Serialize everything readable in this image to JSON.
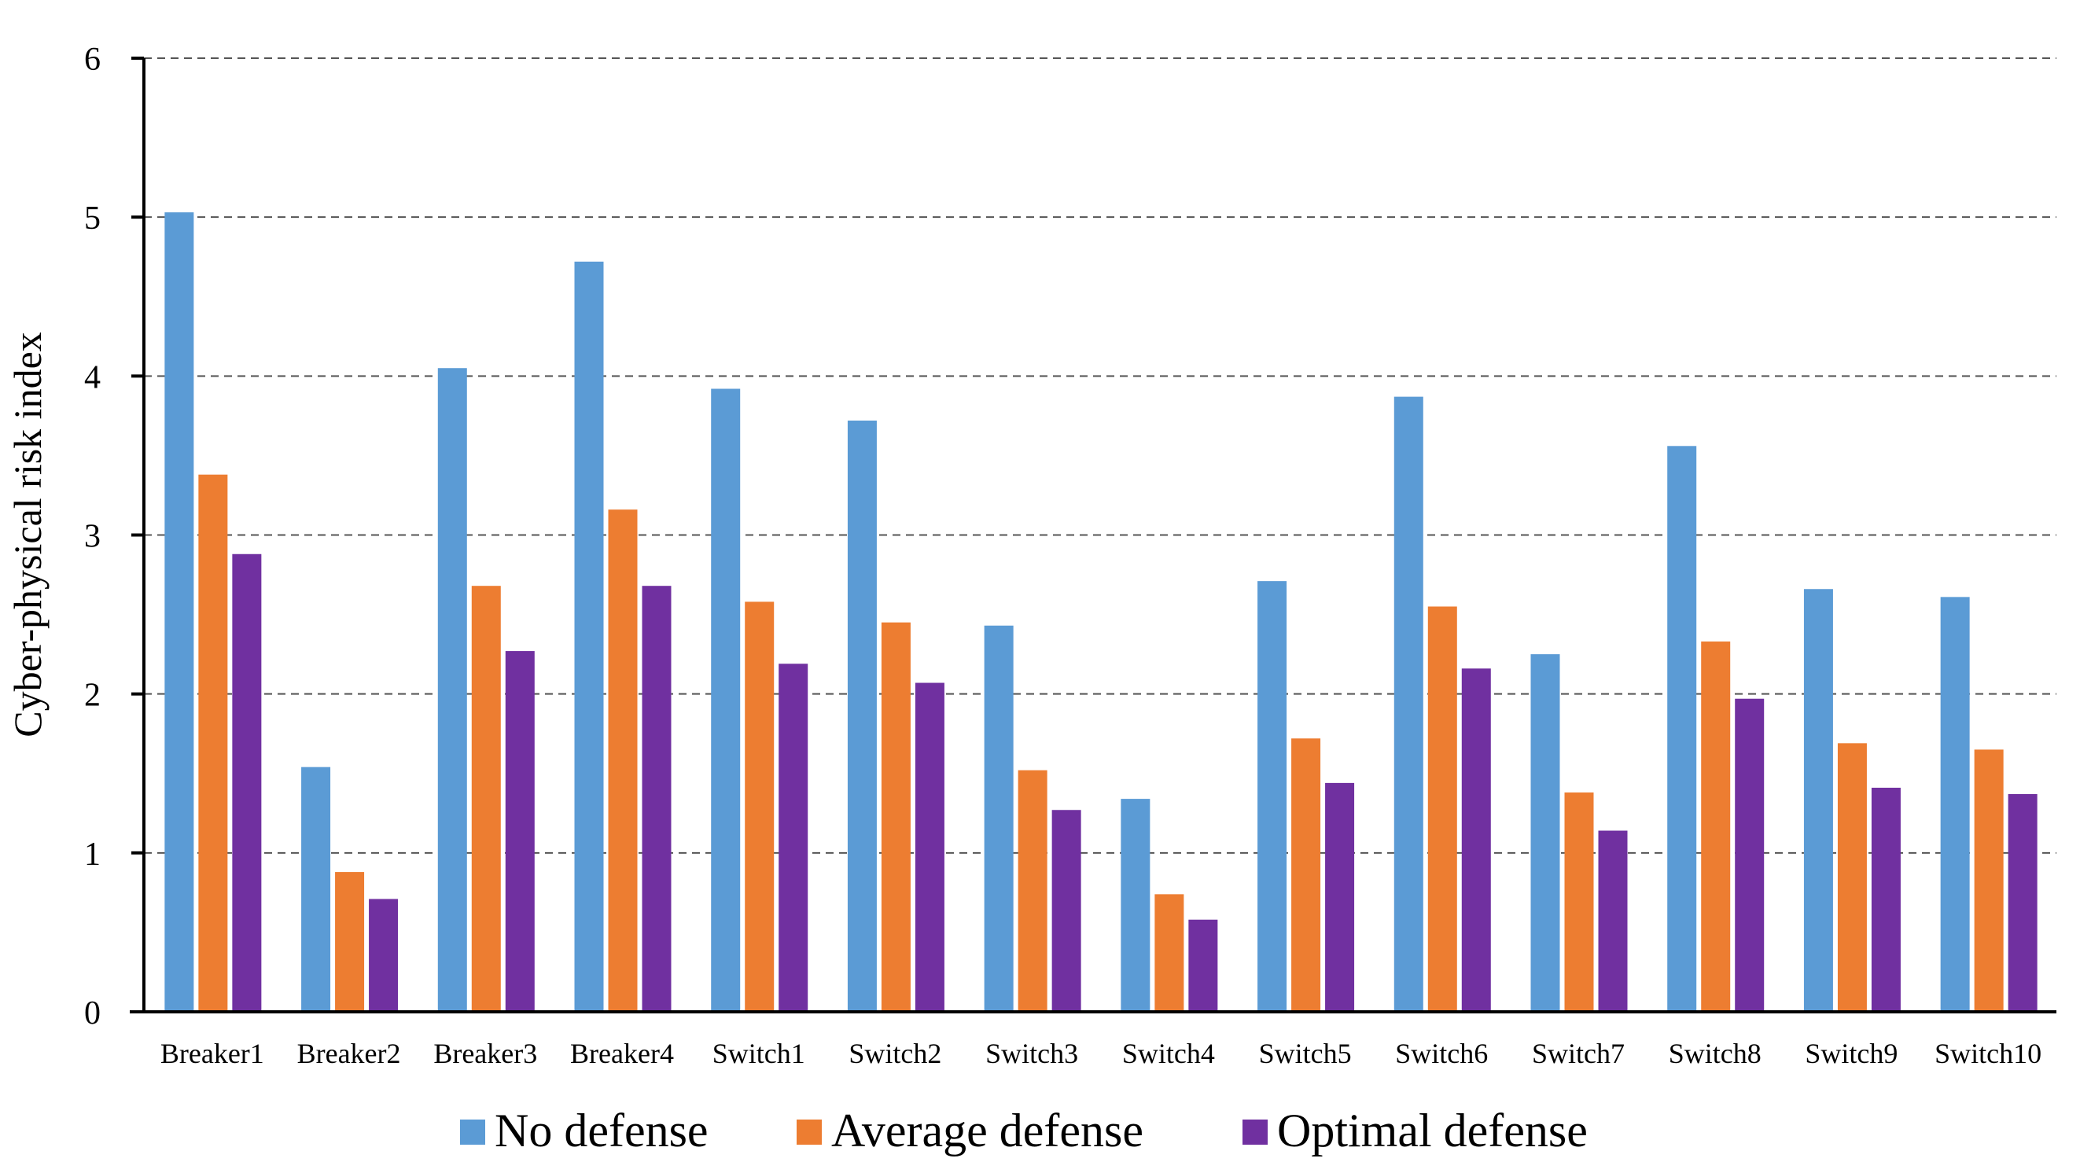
{
  "chart_data": {
    "type": "bar",
    "title": "",
    "xlabel": "",
    "ylabel": "Cyber-physical risk index",
    "ylim": [
      0,
      6
    ],
    "yticks": [
      "0",
      "1",
      "2",
      "3",
      "4",
      "5",
      "6"
    ],
    "grid": true,
    "legend_position": "bottom",
    "categories": [
      "Breaker1",
      "Breaker2",
      "Breaker3",
      "Breaker4",
      "Switch1",
      "Switch2",
      "Switch3",
      "Switch4",
      "Switch5",
      "Switch6",
      "Switch7",
      "Switch8",
      "Switch9",
      "Switch10"
    ],
    "series": [
      {
        "name": "No defense",
        "color": "#5B9BD5",
        "values": [
          5.03,
          1.54,
          4.05,
          4.72,
          3.92,
          3.72,
          2.43,
          1.34,
          2.71,
          3.87,
          2.25,
          3.56,
          2.66,
          2.61
        ]
      },
      {
        "name": "Average defense",
        "color": "#ED7D31",
        "values": [
          3.38,
          0.88,
          2.68,
          3.16,
          2.58,
          2.45,
          1.52,
          0.74,
          1.72,
          2.55,
          1.38,
          2.33,
          1.69,
          1.65
        ]
      },
      {
        "name": "Optimal defense",
        "color": "#7030A0",
        "values": [
          2.88,
          0.71,
          2.27,
          2.68,
          2.19,
          2.07,
          1.27,
          0.58,
          1.44,
          2.16,
          1.14,
          1.97,
          1.41,
          1.37
        ]
      }
    ]
  }
}
